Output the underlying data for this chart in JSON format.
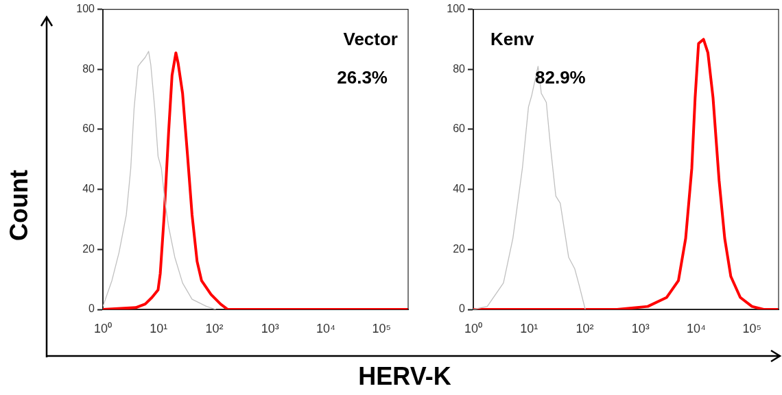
{
  "chart_data": [
    {
      "type": "line",
      "title": "Vector",
      "annotations": [
        "26.3%"
      ],
      "xlabel": "HERV-K",
      "ylabel": "Count",
      "log": "x",
      "grid": false,
      "legend": false,
      "marker": "none",
      "xlim": [
        1,
        300000
      ],
      "xticks": [
        {
          "value": 1,
          "label": "10⁰"
        },
        {
          "value": 10,
          "label": "10¹"
        },
        {
          "value": 100,
          "label": "10²"
        },
        {
          "value": 1000,
          "label": "10³"
        },
        {
          "value": 10000,
          "label": "10⁴"
        },
        {
          "value": 100000,
          "label": "10⁵"
        }
      ],
      "ylim": [
        0,
        100
      ],
      "yticks": [
        0,
        20,
        40,
        60,
        80,
        100
      ],
      "series": [
        {
          "color": "#c0c0c0",
          "x": [
            1,
            1.45,
            1.95,
            2.63,
            3.16,
            3.63,
            4.27,
            4.68,
            5.75,
            6.61,
            7.24,
            8.51,
            9.77,
            11.2,
            13.2,
            15.1,
            19.5,
            26.9,
            39.8,
            72.4,
            107
          ],
          "values": [
            1,
            9.6,
            19,
            31.5,
            47,
            67,
            81,
            82,
            84,
            86,
            81.5,
            67,
            51,
            47,
            35,
            27.6,
            17.4,
            8.8,
            3.4,
            1,
            0
          ]
        },
        {
          "color": "#ff0000",
          "x": [
            1,
            3.89,
            5.75,
            7.59,
            9.77,
            10.7,
            12.6,
            15.1,
            17.4,
            20.4,
            22.4,
            26.9,
            33.1,
            39.8,
            49,
            58.9,
            87.1,
            129,
            174,
            300000
          ],
          "values": [
            0,
            0.6,
            1.8,
            4,
            6.5,
            12,
            31.5,
            59,
            78,
            85.5,
            82,
            72,
            51,
            31.5,
            16,
            9.6,
            5,
            1.8,
            0,
            0
          ]
        }
      ]
    },
    {
      "type": "line",
      "title": "Kenv",
      "annotations": [
        "82.9%"
      ],
      "log": "x",
      "grid": false,
      "legend": false,
      "marker": "none",
      "xlim": [
        1,
        300000
      ],
      "xticks": [
        {
          "value": 1,
          "label": "10⁰"
        },
        {
          "value": 10,
          "label": "10¹"
        },
        {
          "value": 100,
          "label": "10²"
        },
        {
          "value": 1000,
          "label": "10³"
        },
        {
          "value": 10000,
          "label": "10⁴"
        },
        {
          "value": 100000,
          "label": "10⁵"
        }
      ],
      "ylim": [
        0,
        100
      ],
      "yticks": [
        0,
        20,
        40,
        60,
        80,
        100
      ],
      "series": [
        {
          "color": "#c0c0c0",
          "x": [
            1,
            1.78,
            3.47,
            5.13,
            7.59,
            9.77,
            11.2,
            14.5,
            16.6,
            20.4,
            24.5,
            30.2,
            36.3,
            51.3,
            66.1,
            79.4,
            102
          ],
          "values": [
            0,
            1,
            8.8,
            23.7,
            47,
            67.5,
            71.4,
            81,
            72,
            69,
            53.4,
            37.8,
            35.4,
            17.4,
            13.5,
            8,
            0
          ]
        },
        {
          "color": "#ff0000",
          "x": [
            1,
            380,
            1350,
            2950,
            4790,
            6460,
            8320,
            9550,
            11000,
            13500,
            16200,
            20000,
            25700,
            32400,
            41700,
            61700,
            100000,
            162000,
            300000
          ],
          "values": [
            0,
            0,
            1,
            4,
            9.6,
            23.7,
            47,
            70.6,
            88.6,
            90,
            85.5,
            70.6,
            43,
            23.7,
            11,
            4,
            1,
            0,
            0
          ]
        }
      ]
    }
  ]
}
